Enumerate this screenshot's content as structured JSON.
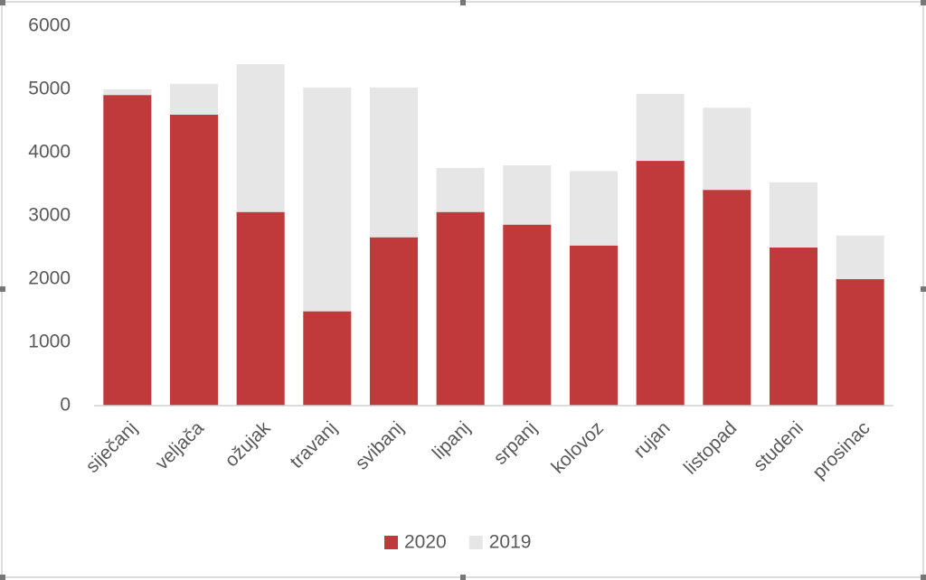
{
  "chart_data": {
    "type": "bar",
    "categories": [
      "siječanj",
      "veljača",
      "ožujak",
      "travanj",
      "svibanj",
      "lipanj",
      "srpanj",
      "kolovoz",
      "rujan",
      "listopad",
      "studeni",
      "prosinac"
    ],
    "series": [
      {
        "name": "2020",
        "color": "#c0393b",
        "values": [
          4910,
          4600,
          3060,
          1490,
          2660,
          3060,
          2860,
          2530,
          3870,
          3410,
          2500,
          2000
        ]
      },
      {
        "name": "2019",
        "color": "#e6e6e6",
        "values": [
          5000,
          5090,
          5400,
          5030,
          5030,
          3760,
          3800,
          3710,
          4930,
          4710,
          3530,
          2690
        ]
      }
    ],
    "ylim": [
      0,
      6000
    ],
    "yticks": [
      0,
      1000,
      2000,
      3000,
      4000,
      5000,
      6000
    ],
    "grid": false,
    "legend": "bottom"
  }
}
